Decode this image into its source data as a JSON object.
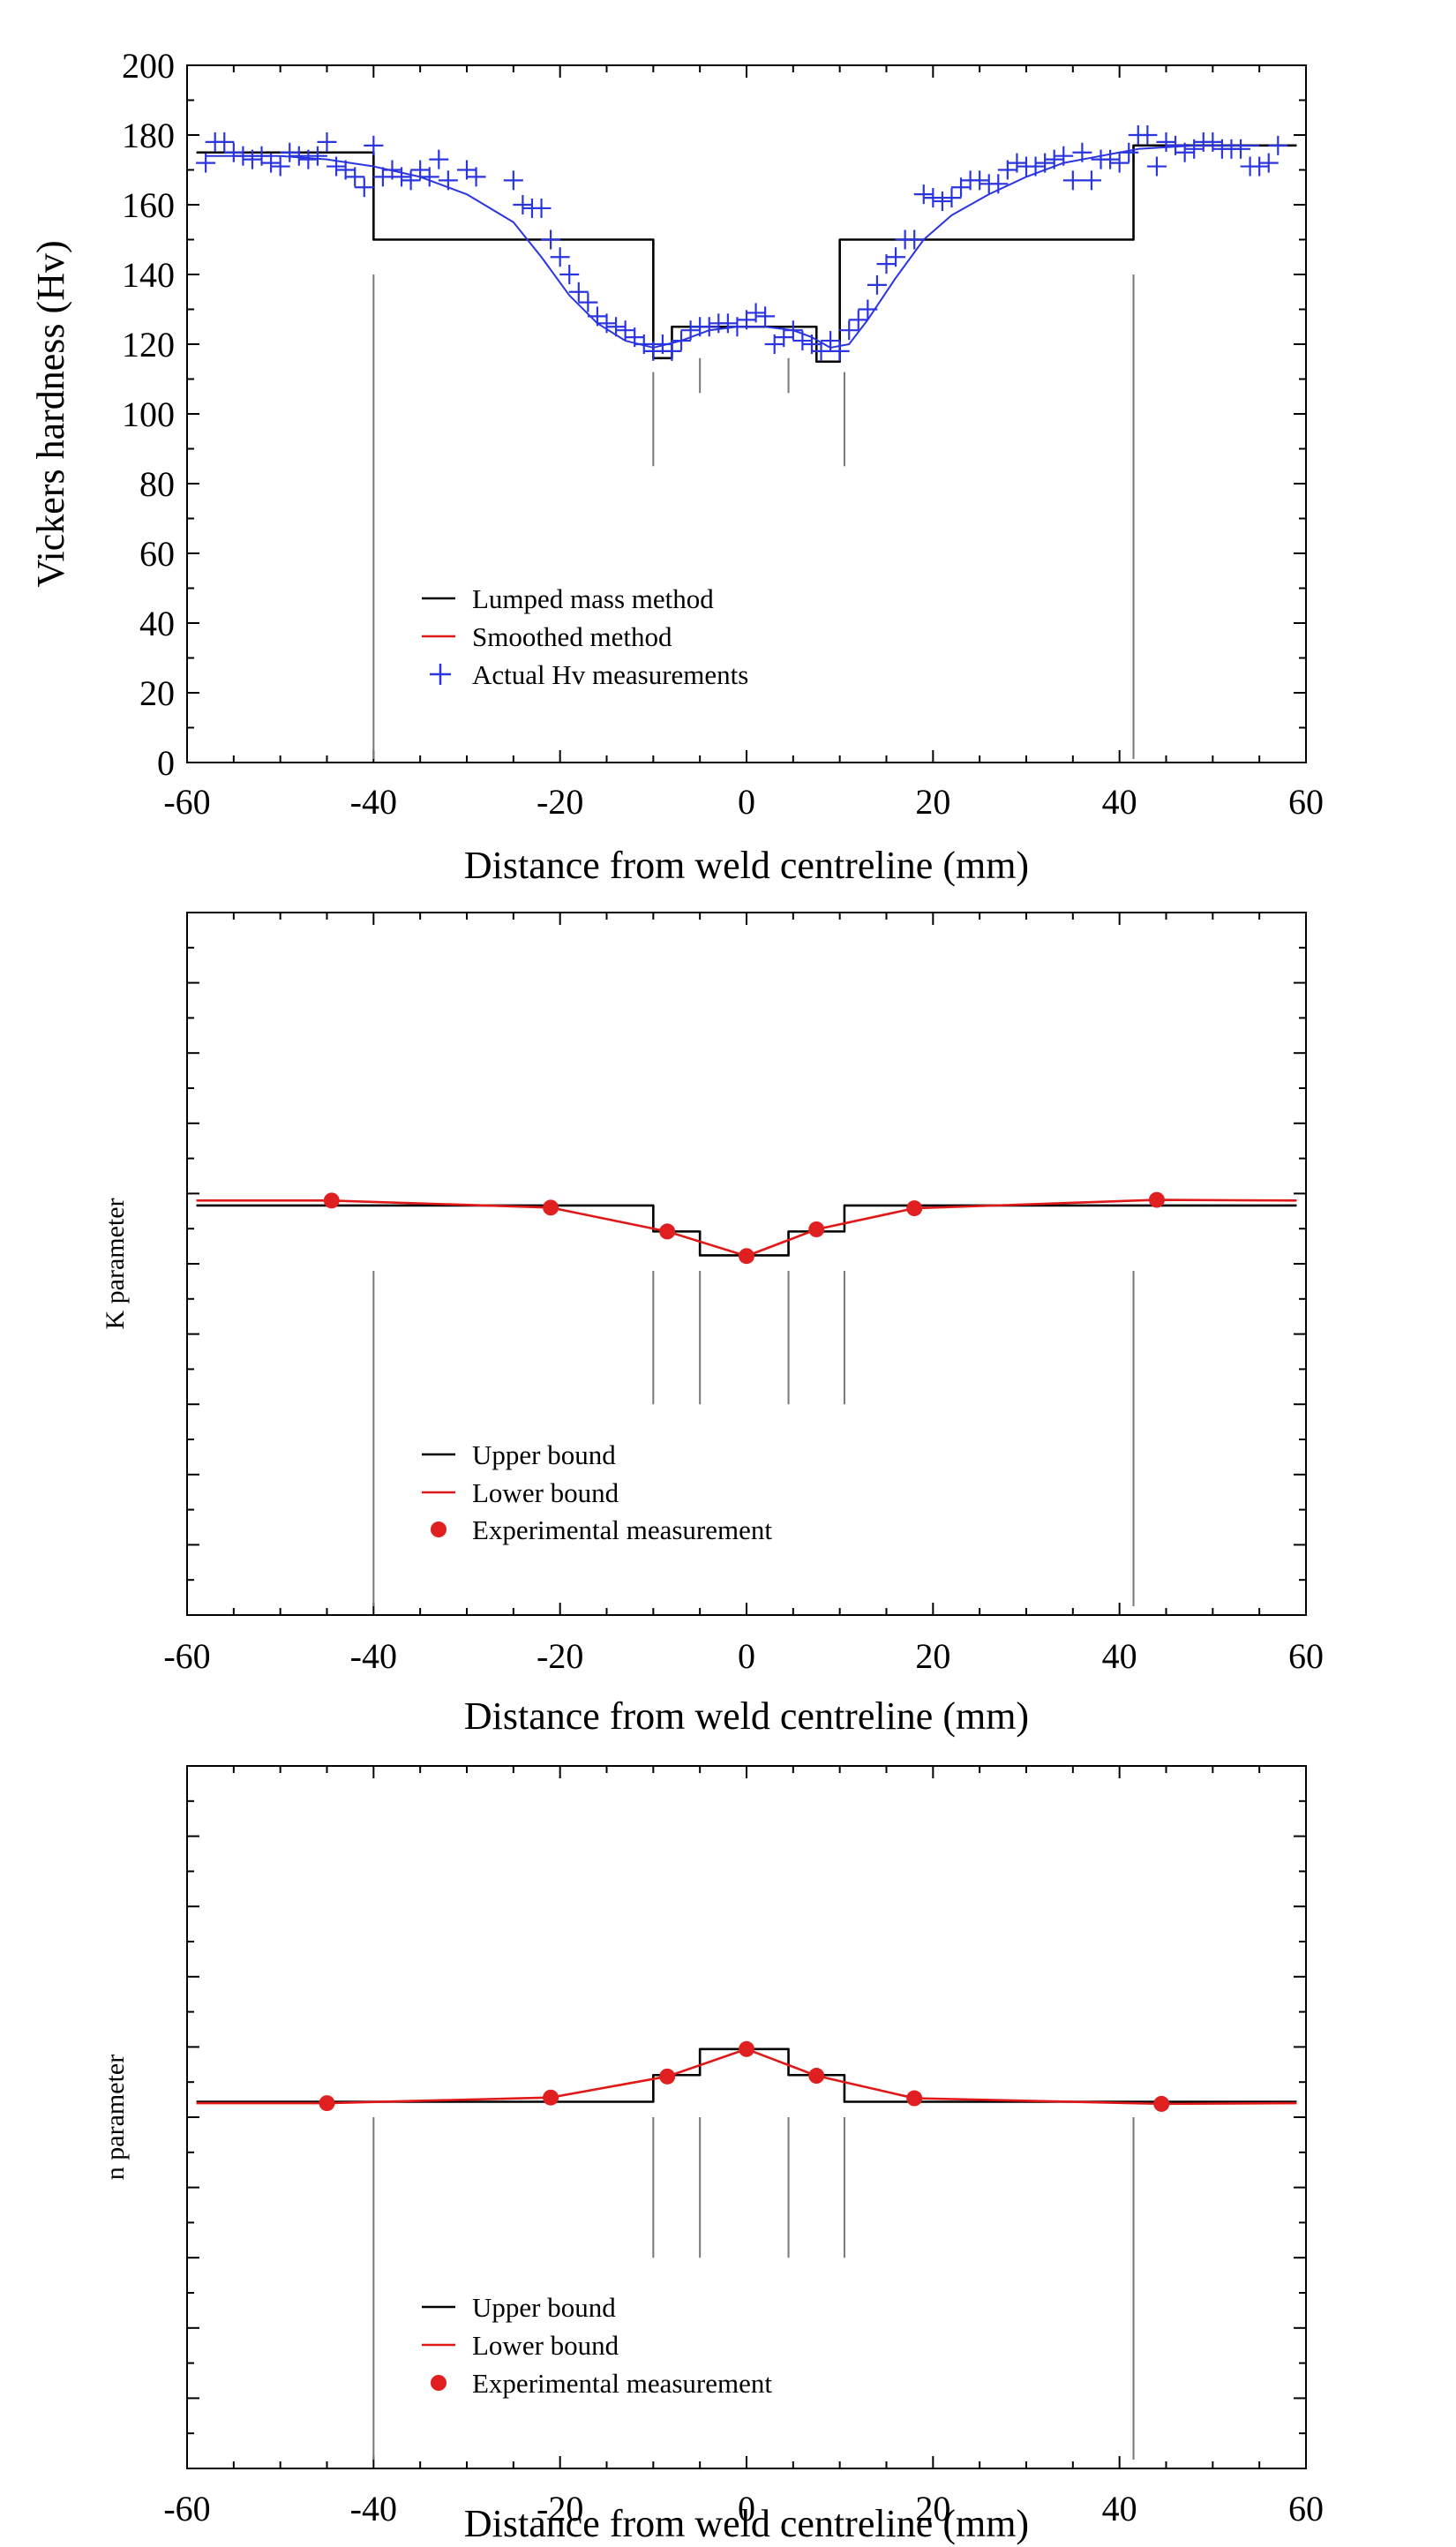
{
  "chart_data": [
    {
      "type": "line",
      "xlabel": "Distance from weld centreline (mm)",
      "ylabel": "Vickers hardness (Hv)",
      "xlim": [
        -60,
        60
      ],
      "ylim": [
        0,
        200
      ],
      "x_ticks": [
        "-60",
        "-40",
        "-20",
        "0",
        "20",
        "40",
        "60"
      ],
      "y_ticks": [
        "0",
        "20",
        "40",
        "60",
        "80",
        "100",
        "120",
        "140",
        "160",
        "180",
        "200"
      ],
      "legend": [
        "Lumped mass method",
        "Smoothed method",
        "Actual Hv measurements"
      ],
      "legend_position": "lower-left",
      "grid": false,
      "colors": {
        "lumped": "#000000",
        "smoothed": "#2a35e0",
        "measurements": "#2a35e0",
        "zone_lines": "#777777"
      },
      "zone_boundaries": [
        -40,
        -10,
        -5,
        4.5,
        10.5,
        41.5
      ],
      "series": [
        {
          "name": "Lumped mass method",
          "x": [
            -59,
            -40,
            -40,
            -10,
            -10,
            -8,
            -8,
            7.5,
            7.5,
            10,
            10,
            41.5,
            41.5,
            59
          ],
          "y": [
            175,
            175,
            150,
            150,
            116,
            116,
            125,
            125,
            115,
            115,
            150,
            150,
            177,
            177
          ]
        },
        {
          "name": "Smoothed method",
          "x": [
            -58,
            -50,
            -45,
            -40,
            -35,
            -30,
            -25,
            -22,
            -19,
            -16,
            -13,
            -10,
            -7,
            -4,
            -1,
            2,
            5,
            7,
            9,
            11,
            13,
            16,
            19,
            22,
            26,
            30,
            34,
            38,
            42,
            48,
            55
          ],
          "y": [
            174,
            174,
            173,
            171,
            168,
            163,
            155,
            145,
            134,
            126,
            121,
            119,
            121,
            124,
            125,
            125,
            124,
            122,
            119,
            120,
            127,
            139,
            150,
            157,
            163,
            168,
            172,
            174,
            176,
            177,
            177
          ]
        },
        {
          "name": "Actual Hv measurements",
          "x": [
            -58,
            -57,
            -56,
            -55,
            -54,
            -53,
            -52,
            -51,
            -50,
            -49,
            -48,
            -47,
            -46,
            -45,
            -44,
            -43,
            -42,
            -41,
            -40,
            -39,
            -38,
            -37,
            -36,
            -35,
            -34,
            -33,
            -32,
            -30,
            -29,
            -25,
            -24,
            -23,
            -22,
            -21,
            -20,
            -19,
            -18,
            -17,
            -16,
            -15,
            -14,
            -13,
            -12,
            -11,
            -10,
            -9,
            -8,
            -7,
            -6,
            -5,
            -4,
            -3,
            -2,
            -1,
            0,
            1,
            2,
            3,
            4,
            5,
            6,
            7,
            8,
            9,
            10,
            11,
            12,
            13,
            14,
            15,
            16,
            17,
            18,
            19,
            20,
            21,
            22,
            23,
            24,
            25,
            26,
            27,
            28,
            29,
            30,
            31,
            32,
            33,
            34,
            35,
            36,
            37,
            38,
            39,
            40,
            41,
            42,
            43,
            44,
            45,
            46,
            47,
            48,
            49,
            50,
            51,
            52,
            53,
            54,
            55,
            56,
            57
          ],
          "y": [
            172,
            178,
            178,
            175,
            174,
            173,
            174,
            172,
            171,
            175,
            174,
            173,
            174,
            178,
            171,
            170,
            168,
            165,
            177,
            168,
            170,
            168,
            167,
            170,
            168,
            173,
            167,
            170,
            168,
            167,
            160,
            159,
            159,
            150,
            145,
            140,
            135,
            132,
            128,
            126,
            125,
            124,
            122,
            120,
            118,
            120,
            118,
            121,
            124,
            125,
            125,
            126,
            126,
            125,
            127,
            129,
            128,
            120,
            122,
            124,
            121,
            120,
            118,
            121,
            118,
            124,
            127,
            130,
            137,
            143,
            145,
            150,
            150,
            163,
            162,
            161,
            162,
            165,
            167,
            167,
            166,
            166,
            170,
            172,
            171,
            171,
            172,
            173,
            174,
            167,
            175,
            167,
            173,
            173,
            172,
            175,
            180,
            180,
            171,
            178,
            177,
            175,
            176,
            178,
            178,
            176,
            176,
            176,
            171,
            171,
            172,
            177
          ]
        }
      ]
    },
    {
      "type": "line",
      "xlabel": "Distance from weld centreline (mm)",
      "ylabel": "K parameter",
      "xlim": [
        -60,
        60
      ],
      "ylim": [
        0,
        1
      ],
      "x_ticks": [
        "-60",
        "-40",
        "-20",
        "0",
        "20",
        "40",
        "60"
      ],
      "y_ticks": [],
      "legend": [
        "Upper bound",
        "Lower bound",
        "Experimental measurement"
      ],
      "legend_position": "lower-left",
      "grid": false,
      "colors": {
        "upper": "#000000",
        "lower": "#e01818",
        "measurement": "#e02020",
        "zone_lines": "#777777"
      },
      "zone_boundaries": [
        -40,
        -10,
        -5,
        4.5,
        10.5,
        41.5
      ],
      "series": [
        {
          "name": "Upper bound",
          "x": [
            -59,
            -10,
            -10,
            -5,
            -5,
            4.5,
            4.5,
            10.5,
            10.5,
            59
          ],
          "y": [
            0.583,
            0.583,
            0.546,
            0.546,
            0.512,
            0.512,
            0.546,
            0.546,
            0.583,
            0.583
          ]
        },
        {
          "name": "Lower bound",
          "x": [
            -59,
            -44.5,
            -21,
            -8.5,
            0,
            7.5,
            18,
            44,
            59
          ],
          "y": [
            0.59,
            0.59,
            0.58,
            0.546,
            0.511,
            0.549,
            0.579,
            0.591,
            0.59
          ]
        },
        {
          "name": "Experimental measurement",
          "x": [
            -44.5,
            -21,
            -8.5,
            0,
            7.5,
            18,
            44
          ],
          "y": [
            0.59,
            0.58,
            0.546,
            0.511,
            0.549,
            0.579,
            0.591
          ]
        }
      ]
    },
    {
      "type": "line",
      "xlabel": "Distance from weld centreline (mm)",
      "ylabel": "n parameter",
      "xlim": [
        -60,
        60
      ],
      "ylim": [
        0,
        1
      ],
      "x_ticks": [
        "-60",
        "-40",
        "-20",
        "0",
        "20",
        "40",
        "60"
      ],
      "y_ticks": [],
      "legend": [
        "Upper bound",
        "Lower bound",
        "Experimental measurement"
      ],
      "legend_position": "lower-left",
      "grid": false,
      "colors": {
        "upper": "#000000",
        "lower": "#e01818",
        "measurement": "#e02020",
        "zone_lines": "#777777"
      },
      "zone_boundaries": [
        -40,
        -10,
        -5,
        4.5,
        10.5,
        41.5
      ],
      "series": [
        {
          "name": "Upper bound",
          "x": [
            -59,
            -10,
            -10,
            -5,
            -5,
            4.5,
            4.5,
            10.5,
            10.5,
            59
          ],
          "y": [
            0.522,
            0.522,
            0.56,
            0.56,
            0.597,
            0.597,
            0.56,
            0.56,
            0.522,
            0.522
          ]
        },
        {
          "name": "Lower bound",
          "x": [
            -59,
            -45,
            -21,
            -8.5,
            0,
            7.5,
            18,
            44.5,
            59
          ],
          "y": [
            0.52,
            0.52,
            0.528,
            0.558,
            0.597,
            0.559,
            0.527,
            0.519,
            0.52
          ]
        },
        {
          "name": "Experimental measurement",
          "x": [
            -45,
            -21,
            -8.5,
            0,
            7.5,
            18,
            44.5
          ],
          "y": [
            0.52,
            0.528,
            0.558,
            0.597,
            0.559,
            0.527,
            0.519
          ]
        }
      ]
    }
  ]
}
